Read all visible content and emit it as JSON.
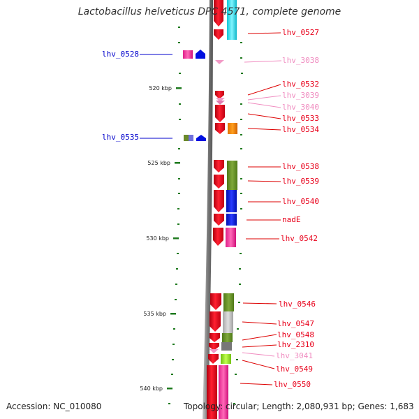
{
  "title": "Lactobacillus helveticus DPC 4571, complete genome",
  "footer": {
    "accession": "Accession: NC_010080",
    "topology": "Topology: circular; Length: 2,080,931 bp; Genes: 1,683"
  },
  "colors": {
    "backbone": "#9a9a9a",
    "tick": "#1e7a1e",
    "forward_gene": "#e8001a",
    "label_red": "#dd0000",
    "label_blue": "#0000cc",
    "label_pink": "#f08cc0"
  },
  "scale_ticks": [
    {
      "kbp": 520,
      "label": "520 kbp"
    },
    {
      "kbp": 525,
      "label": "525 kbp"
    },
    {
      "kbp": 530,
      "label": "530 kbp"
    },
    {
      "kbp": 535,
      "label": "535 kbp"
    },
    {
      "kbp": 540,
      "label": "540 kbp"
    }
  ],
  "genes": [
    {
      "name": "lhv_0527",
      "color": "#e8001a"
    },
    {
      "name": "lhv_0528",
      "color": "#0000cc"
    },
    {
      "name": "lhv_3038",
      "color": "#f08cc0"
    },
    {
      "name": "lhv_0532",
      "color": "#e8001a"
    },
    {
      "name": "lhv_3039",
      "color": "#f08cc0"
    },
    {
      "name": "lhv_3040",
      "color": "#f08cc0"
    },
    {
      "name": "lhv_0533",
      "color": "#e8001a"
    },
    {
      "name": "lhv_0534",
      "color": "#e8001a"
    },
    {
      "name": "lhv_0535",
      "color": "#0000cc"
    },
    {
      "name": "lhv_0538",
      "color": "#e8001a"
    },
    {
      "name": "lhv_0539",
      "color": "#e8001a"
    },
    {
      "name": "lhv_0540",
      "color": "#e8001a"
    },
    {
      "name": "nadE",
      "color": "#e8001a"
    },
    {
      "name": "lhv_0542",
      "color": "#e8001a"
    },
    {
      "name": "lhv_0546",
      "color": "#e8001a"
    },
    {
      "name": "lhv_0547",
      "color": "#e8001a"
    },
    {
      "name": "lhv_0548",
      "color": "#e8001a"
    },
    {
      "name": "lhv_2310",
      "color": "#e8001a"
    },
    {
      "name": "lhv_3041",
      "color": "#f08cc0"
    },
    {
      "name": "lhv_0549",
      "color": "#e8001a"
    },
    {
      "name": "lhv_0550",
      "color": "#e8001a"
    }
  ]
}
